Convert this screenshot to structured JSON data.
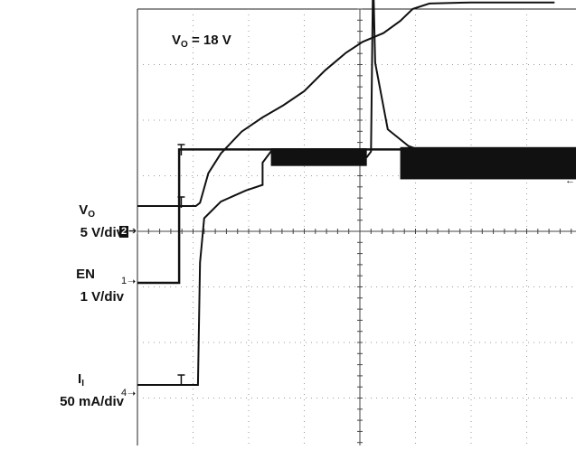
{
  "chart_data": {
    "type": "line",
    "title": "",
    "annotation": {
      "main": "V",
      "sub": "O",
      "rest": " = 18 V"
    },
    "grid": true,
    "x_divisions": 10,
    "y_divisions": 8,
    "channels": [
      {
        "id": "vo",
        "label_main": "V",
        "label_sub": "O",
        "scale": "5 V/div",
        "marker": "2",
        "marker_style": "box",
        "unit_note": "volts",
        "points": [
          [
            0,
            0
          ],
          [
            1.4,
            0
          ],
          [
            1.5,
            0.3
          ],
          [
            1.7,
            3
          ],
          [
            2,
            4.8
          ],
          [
            2.5,
            6.8
          ],
          [
            3,
            8.1
          ],
          [
            3.5,
            9.2
          ],
          [
            4,
            10.5
          ],
          [
            4.5,
            12.4
          ],
          [
            5,
            14
          ],
          [
            5.4,
            15
          ],
          [
            5.9,
            15.8
          ],
          [
            6.3,
            16.9
          ],
          [
            6.6,
            18
          ],
          [
            7,
            18.5
          ],
          [
            8,
            18.6
          ],
          [
            10,
            18.6
          ]
        ]
      },
      {
        "id": "en",
        "label_main": "EN",
        "label_sub": "",
        "scale": "1 V/div",
        "marker": "1",
        "marker_style": "arrow",
        "points": [
          [
            0,
            0
          ],
          [
            1,
            0
          ],
          [
            1,
            2.4
          ],
          [
            10,
            2.4
          ]
        ]
      },
      {
        "id": "ii",
        "label_main": "I",
        "label_sub": "I",
        "scale": "50 mA/div",
        "marker": "4",
        "marker_style": "arrow",
        "points": [
          [
            0,
            0
          ],
          [
            1.45,
            0
          ],
          [
            1.5,
            110
          ],
          [
            1.6,
            150
          ],
          [
            2,
            165
          ],
          [
            2.6,
            175
          ],
          [
            3,
            180
          ],
          [
            3,
            200
          ],
          [
            3.2,
            210
          ],
          [
            5.5,
            205
          ],
          [
            5.6,
            210
          ],
          [
            5.65,
            370
          ],
          [
            5.7,
            290
          ],
          [
            6,
            230
          ],
          [
            6.5,
            215
          ],
          [
            7,
            208
          ],
          [
            10,
            208
          ]
        ]
      }
    ]
  }
}
